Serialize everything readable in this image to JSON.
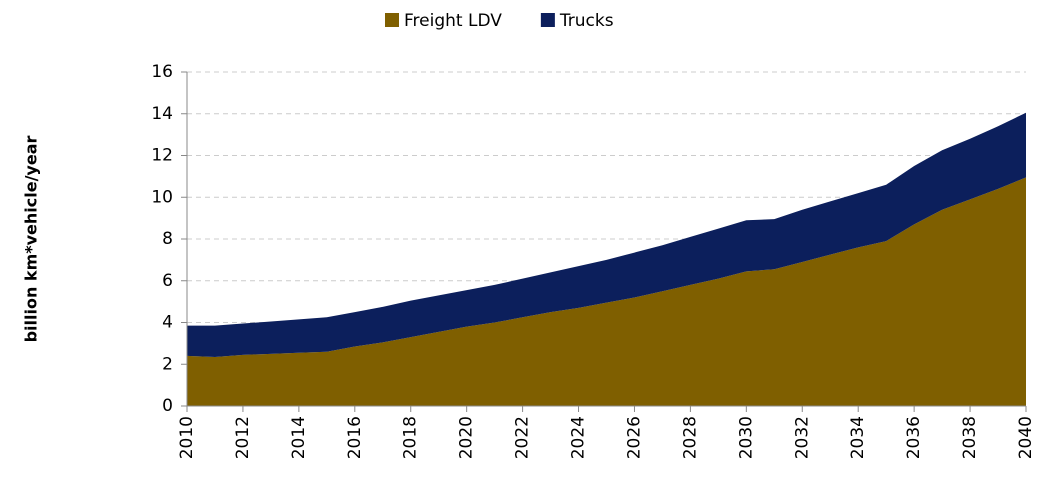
{
  "chart_data": {
    "type": "area",
    "stacked": true,
    "y_label": "billion  km*vehicle/year",
    "x": [
      2010,
      2011,
      2012,
      2013,
      2014,
      2015,
      2016,
      2017,
      2018,
      2019,
      2020,
      2021,
      2022,
      2023,
      2024,
      2025,
      2026,
      2027,
      2028,
      2029,
      2030,
      2031,
      2032,
      2033,
      2034,
      2035,
      2036,
      2037,
      2038,
      2039,
      2040
    ],
    "series": [
      {
        "name": "Freight LDV",
        "color": "#7f5f00",
        "values": [
          2.4,
          2.35,
          2.45,
          2.5,
          2.55,
          2.6,
          2.85,
          3.05,
          3.3,
          3.55,
          3.8,
          4.0,
          4.25,
          4.5,
          4.7,
          4.95,
          5.2,
          5.5,
          5.8,
          6.1,
          6.45,
          6.55,
          6.9,
          7.25,
          7.6,
          7.9,
          8.7,
          9.4,
          9.9,
          10.4,
          10.95
        ]
      },
      {
        "name": "Trucks",
        "color": "#0c1f5c",
        "values": [
          1.45,
          1.5,
          1.5,
          1.55,
          1.6,
          1.65,
          1.65,
          1.7,
          1.75,
          1.75,
          1.75,
          1.8,
          1.85,
          1.9,
          2.0,
          2.05,
          2.15,
          2.2,
          2.3,
          2.4,
          2.45,
          2.4,
          2.5,
          2.55,
          2.6,
          2.7,
          2.8,
          2.85,
          2.9,
          3.0,
          3.1
        ]
      }
    ],
    "xlim": [
      2010,
      2040
    ],
    "xticks": [
      2010,
      2012,
      2014,
      2016,
      2018,
      2020,
      2022,
      2024,
      2026,
      2028,
      2030,
      2032,
      2034,
      2036,
      2038,
      2040
    ],
    "ylim": [
      0,
      16
    ],
    "yticks": [
      0,
      2,
      4,
      6,
      8,
      10,
      12,
      14,
      16
    ],
    "grid": true,
    "legend": "top"
  }
}
